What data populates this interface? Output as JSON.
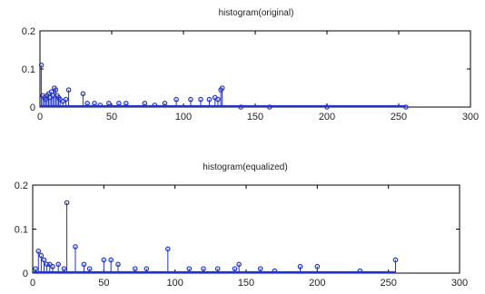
{
  "colors": {
    "stem": "#2233cc",
    "axis": "#000000",
    "background": "#ffffff"
  },
  "chart_data": [
    {
      "type": "stem",
      "title": "histogram(original)",
      "xlim": [
        0,
        300
      ],
      "ylim": [
        0,
        0.2
      ],
      "xticks": [
        "0",
        "50",
        "100",
        "150",
        "200",
        "250",
        "300"
      ],
      "yticks": [
        "0",
        "0.1",
        "0.2"
      ],
      "grid": false,
      "series": [
        {
          "x": [
            1,
            2,
            3,
            4,
            5,
            6,
            7,
            8,
            9,
            10,
            11,
            12,
            13,
            14,
            16,
            18,
            20,
            30,
            33,
            38,
            42,
            48,
            55,
            60,
            73,
            80,
            87,
            95,
            105,
            112,
            118,
            122,
            124,
            126,
            127,
            140,
            160,
            200,
            255
          ],
          "y": [
            0.11,
            0.03,
            0.025,
            0.02,
            0.03,
            0.035,
            0.025,
            0.04,
            0.03,
            0.05,
            0.045,
            0.03,
            0.025,
            0.02,
            0.015,
            0.02,
            0.045,
            0.035,
            0.01,
            0.01,
            0.005,
            0.01,
            0.01,
            0.01,
            0.01,
            0.005,
            0.01,
            0.02,
            0.02,
            0.02,
            0.02,
            0.025,
            0.02,
            0.045,
            0.05,
            0,
            0,
            0,
            0
          ]
        }
      ]
    },
    {
      "type": "stem",
      "title": "histogram(equalized)",
      "xlim": [
        0,
        300
      ],
      "ylim": [
        0,
        0.2
      ],
      "xticks": [
        "0",
        "50",
        "100",
        "150",
        "200",
        "250",
        "300"
      ],
      "yticks": [
        "0",
        "0.1",
        "0.2"
      ],
      "grid": false,
      "series": [
        {
          "x": [
            2,
            4,
            6,
            8,
            10,
            12,
            14,
            18,
            22,
            24,
            30,
            36,
            40,
            50,
            55,
            60,
            72,
            80,
            95,
            110,
            120,
            130,
            142,
            145,
            160,
            170,
            188,
            200,
            230,
            255
          ],
          "y": [
            0.01,
            0.05,
            0.04,
            0.03,
            0.02,
            0.02,
            0.015,
            0.02,
            0.01,
            0.16,
            0.06,
            0.02,
            0.01,
            0.03,
            0.03,
            0.02,
            0.01,
            0.01,
            0.055,
            0.01,
            0.01,
            0.01,
            0.01,
            0.02,
            0.01,
            0.005,
            0.015,
            0.015,
            0.005,
            0.03
          ]
        }
      ]
    }
  ]
}
